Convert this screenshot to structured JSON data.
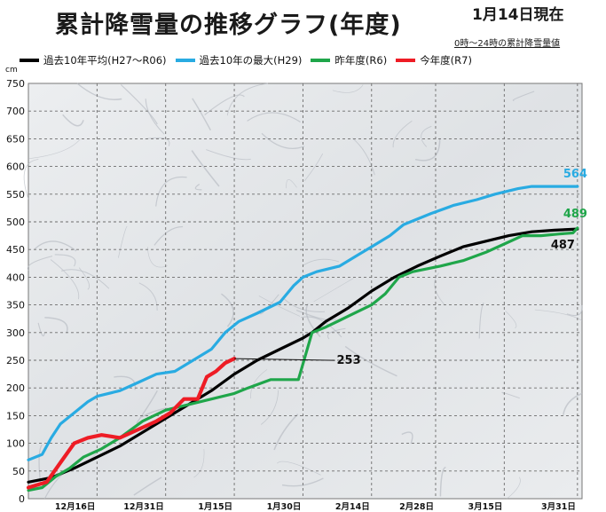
{
  "title": "累計降雪量の推移グラフ(年度)",
  "date_label": "1月14日現在",
  "subnote": "0時～24時の累計降雪量値",
  "unit": "cm",
  "colors": {
    "avg": "#000000",
    "max": "#29abe2",
    "last": "#1fa64a",
    "current": "#ee1c25"
  },
  "chart_data": {
    "type": "line",
    "title": "累計降雪量の推移グラフ(年度)",
    "ylabel": "cm",
    "ylim": [
      0,
      750
    ],
    "yticks": [
      0,
      50,
      100,
      150,
      200,
      250,
      300,
      350,
      400,
      450,
      500,
      550,
      600,
      650,
      700,
      750
    ],
    "x_range_days": [
      0,
      121
    ],
    "x_ticks": [
      {
        "day": 15,
        "label": "12月16日"
      },
      {
        "day": 30,
        "label": "12月31日"
      },
      {
        "day": 45,
        "label": "1月15日"
      },
      {
        "day": 60,
        "label": "1月30日"
      },
      {
        "day": 75,
        "label": "2月14日"
      },
      {
        "day": 89,
        "label": "2月28日"
      },
      {
        "day": 104,
        "label": "3月15日"
      },
      {
        "day": 120,
        "label": "3月31日"
      }
    ],
    "grid": true,
    "legend_position": "top-left",
    "series": [
      {
        "key": "avg",
        "name": "過去10年平均(H27～R06)",
        "end_label": "487",
        "points": [
          [
            0,
            30
          ],
          [
            5,
            38
          ],
          [
            10,
            55
          ],
          [
            15,
            75
          ],
          [
            20,
            95
          ],
          [
            25,
            120
          ],
          [
            30,
            145
          ],
          [
            35,
            170
          ],
          [
            40,
            195
          ],
          [
            45,
            225
          ],
          [
            50,
            250
          ],
          [
            55,
            270
          ],
          [
            60,
            290
          ],
          [
            62,
            300
          ],
          [
            65,
            320
          ],
          [
            70,
            345
          ],
          [
            75,
            375
          ],
          [
            80,
            400
          ],
          [
            85,
            420
          ],
          [
            90,
            438
          ],
          [
            95,
            455
          ],
          [
            100,
            465
          ],
          [
            105,
            475
          ],
          [
            110,
            482
          ],
          [
            115,
            485
          ],
          [
            120,
            487
          ]
        ]
      },
      {
        "key": "max",
        "name": "過去10年の最大(H29)",
        "end_label": "564",
        "points": [
          [
            0,
            70
          ],
          [
            3,
            80
          ],
          [
            5,
            110
          ],
          [
            7,
            135
          ],
          [
            10,
            155
          ],
          [
            13,
            175
          ],
          [
            15,
            185
          ],
          [
            20,
            195
          ],
          [
            24,
            210
          ],
          [
            28,
            225
          ],
          [
            32,
            230
          ],
          [
            36,
            250
          ],
          [
            40,
            270
          ],
          [
            43,
            300
          ],
          [
            46,
            320
          ],
          [
            50,
            335
          ],
          [
            55,
            355
          ],
          [
            58,
            385
          ],
          [
            60,
            400
          ],
          [
            63,
            410
          ],
          [
            68,
            420
          ],
          [
            72,
            440
          ],
          [
            75,
            455
          ],
          [
            79,
            475
          ],
          [
            82,
            495
          ],
          [
            88,
            515
          ],
          [
            93,
            530
          ],
          [
            98,
            540
          ],
          [
            102,
            550
          ],
          [
            107,
            560
          ],
          [
            110,
            564
          ],
          [
            120,
            564
          ]
        ]
      },
      {
        "key": "last",
        "name": "昨年度(R6)",
        "end_label": "489",
        "points": [
          [
            0,
            15
          ],
          [
            3,
            20
          ],
          [
            6,
            40
          ],
          [
            9,
            55
          ],
          [
            12,
            75
          ],
          [
            16,
            90
          ],
          [
            20,
            110
          ],
          [
            25,
            140
          ],
          [
            30,
            160
          ],
          [
            35,
            170
          ],
          [
            40,
            180
          ],
          [
            45,
            190
          ],
          [
            48,
            200
          ],
          [
            53,
            215
          ],
          [
            57,
            215
          ],
          [
            59,
            215
          ],
          [
            62,
            300
          ],
          [
            65,
            310
          ],
          [
            70,
            330
          ],
          [
            75,
            350
          ],
          [
            78,
            370
          ],
          [
            81,
            400
          ],
          [
            84,
            410
          ],
          [
            90,
            420
          ],
          [
            95,
            430
          ],
          [
            100,
            445
          ],
          [
            104,
            460
          ],
          [
            108,
            475
          ],
          [
            112,
            475
          ],
          [
            116,
            478
          ],
          [
            119,
            480
          ],
          [
            120,
            489
          ]
        ]
      },
      {
        "key": "current",
        "name": "今年度(R7)",
        "end_label": "253",
        "points": [
          [
            0,
            20
          ],
          [
            4,
            30
          ],
          [
            7,
            65
          ],
          [
            10,
            100
          ],
          [
            13,
            110
          ],
          [
            16,
            115
          ],
          [
            20,
            110
          ],
          [
            24,
            125
          ],
          [
            28,
            140
          ],
          [
            31,
            155
          ],
          [
            34,
            180
          ],
          [
            37,
            180
          ],
          [
            39,
            220
          ],
          [
            41,
            230
          ],
          [
            43,
            245
          ],
          [
            45,
            253
          ]
        ]
      }
    ]
  }
}
